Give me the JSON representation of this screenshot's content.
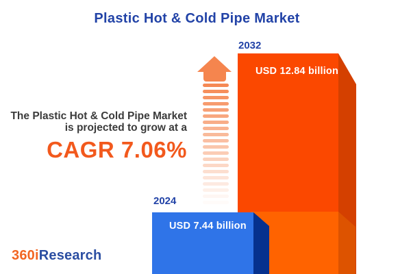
{
  "title": "Plastic Hot & Cold Pipe Market",
  "tagline": {
    "line1": "The Plastic Hot & Cold Pipe Market",
    "line2": "is projected to grow at a",
    "cagr": "CAGR 7.06%"
  },
  "bars": [
    {
      "year": "2024",
      "label": "USD 7.44 billion"
    },
    {
      "year": "2032",
      "label": "USD 12.84 billion"
    }
  ],
  "logo": {
    "prefix": "360i",
    "suffix": "Research"
  },
  "colors": {
    "title_blue": "#2243A7",
    "text_dark": "#3B3B3B",
    "cagr_orange": "#F2591D",
    "bar_2032_face": "#FB4800",
    "bar_2032_side": "#D44000",
    "bar_2032_front_face": "#FF6300",
    "bar_2032_front_side": "#DD5300",
    "bar_2024_face": "#2F74E8",
    "bar_2024_side": "#06318E",
    "arrow_salmon": "#F5854E",
    "logo_orange": "#F26522",
    "logo_blue": "#2B4EA2"
  },
  "chart_data": {
    "type": "bar",
    "title": "Plastic Hot & Cold Pipe Market",
    "categories": [
      "2024",
      "2032"
    ],
    "values": [
      7.44,
      12.84
    ],
    "unit": "USD billion",
    "value_labels": [
      "USD 7.44 billion",
      "USD 12.84 billion"
    ],
    "cagr_percent": 7.06,
    "annotation": "The Plastic Hot & Cold Pipe Market is projected to grow at a CAGR 7.06%",
    "legend": "none",
    "grid": false,
    "orientation": "vertical",
    "style": "3d-infographic"
  }
}
